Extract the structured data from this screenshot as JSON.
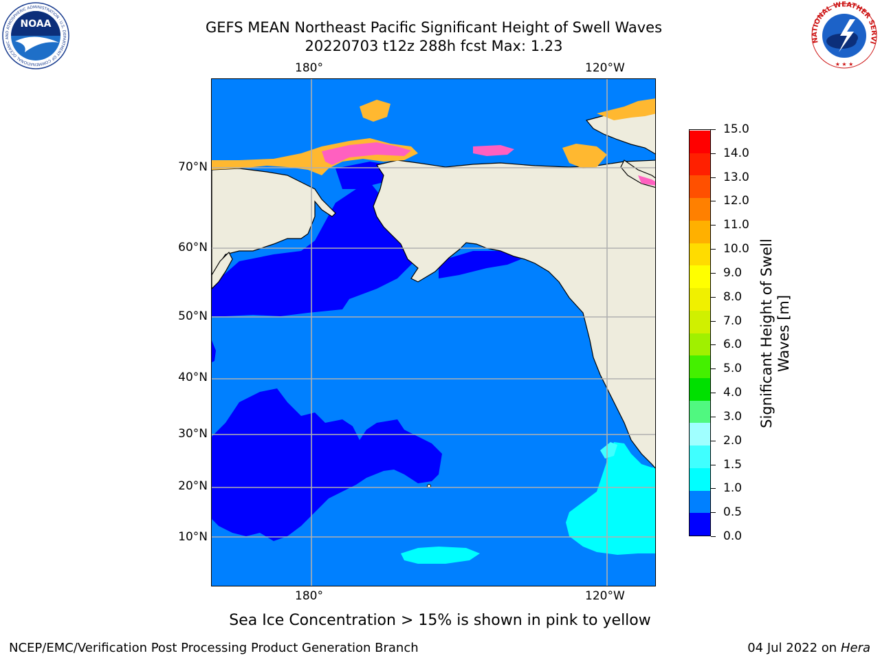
{
  "title_line1": "GEFS MEAN Northeast Pacific Significant Height of Swell Waves",
  "title_line2": "20220703 t12z 288h fcst   Max: 1.23",
  "axes": {
    "lon_ticks": [
      "180°",
      "120°W"
    ],
    "lat_ticks": [
      "70°N",
      "60°N",
      "50°N",
      "40°N",
      "30°N",
      "20°N",
      "10°N"
    ]
  },
  "colorbar": {
    "label": "Significant Height of Swell Waves [m]",
    "tick_labels": [
      "15.0",
      "14.0",
      "13.0",
      "12.0",
      "11.0",
      "10.0",
      "9.0",
      "8.0",
      "7.0",
      "6.0",
      "5.0",
      "4.0",
      "3.0",
      "2.0",
      "1.5",
      "1.0",
      "0.5",
      "0.0"
    ],
    "colors_bottom_to_top": [
      "#0000ff",
      "#0080ff",
      "#00ffff",
      "#40ffff",
      "#a0ffff",
      "#50f880",
      "#00e000",
      "#44f000",
      "#a0f000",
      "#d0f000",
      "#f0f000",
      "#ffff00",
      "#ffdc00",
      "#ffb000",
      "#ff8000",
      "#ff5000",
      "#ff2000",
      "#ff0000"
    ]
  },
  "map_colors": {
    "land": "#eeecdd",
    "swell_0_0.5": "#0000ff",
    "swell_0.5_1.0": "#0080ff",
    "swell_1.0_1.5": "#00ffff",
    "swell_1.5_2.0": "#40ffff",
    "ice_pink": "#ff60c0",
    "ice_yellow": "#ffb830",
    "grid": "#b0b0b0"
  },
  "caption": "Sea Ice Concentration > 15% is shown in pink to yellow",
  "footer": {
    "left": "NCEP/EMC/Verification Post Processing Product Generation Branch",
    "right_date": "04 Jul 2022 on ",
    "right_system": "Hera"
  },
  "logos": {
    "noaa": {
      "text": "NOAA",
      "ring_text": "NATIONAL OCEANIC AND ATMOSPHERIC ADMINISTRATION · U.S. DEPARTMENT OF COMMERCE"
    },
    "nws": {
      "ring_text": "NATIONAL WEATHER SERVICE"
    }
  }
}
